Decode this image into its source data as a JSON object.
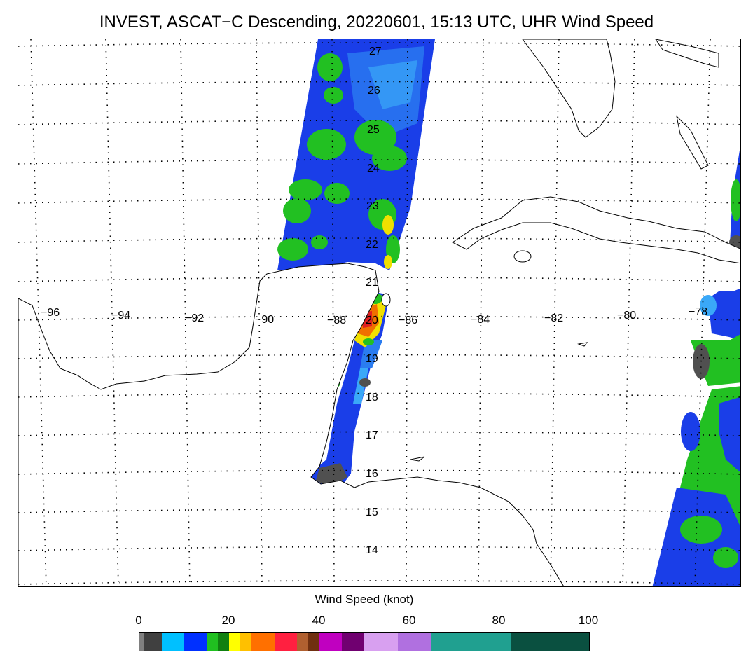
{
  "title": "INVEST, ASCAT−C Descending, 20220601, 15:13 UTC, UHR Wind Speed",
  "map": {
    "lon_labels": [
      "−96",
      "−94",
      "−92",
      "−90",
      "−88",
      "−86",
      "−84",
      "−82",
      "−80",
      "−78"
    ],
    "lat_labels": [
      "27",
      "26",
      "25",
      "24",
      "23",
      "22",
      "21",
      "20",
      "19",
      "18",
      "17",
      "16",
      "15",
      "14"
    ],
    "colors": {
      "land_fill": "#ffffff",
      "coast": "#000000",
      "grid": "#000000",
      "swath_blue": "#1030e0",
      "swath_green": "#22c022",
      "swath_cyan": "#30a8ff",
      "swath_yellow": "#f0e000",
      "swath_orange": "#f07000",
      "swath_red": "#e02020",
      "swath_gray": "#505050"
    }
  },
  "colorbar": {
    "label": "Wind Speed (knot)",
    "tick_labels": [
      "0",
      "20",
      "40",
      "60",
      "80",
      "100"
    ],
    "segments": [
      {
        "color": "#808080",
        "from": 0,
        "to": 1
      },
      {
        "color": "#404040",
        "from": 1,
        "to": 5
      },
      {
        "color": "#00c0ff",
        "from": 5,
        "to": 10
      },
      {
        "color": "#0030ff",
        "from": 10,
        "to": 15
      },
      {
        "color": "#20c020",
        "from": 15,
        "to": 17.5
      },
      {
        "color": "#108010",
        "from": 17.5,
        "to": 20
      },
      {
        "color": "#ffff00",
        "from": 20,
        "to": 22.5
      },
      {
        "color": "#ffc000",
        "from": 22.5,
        "to": 25
      },
      {
        "color": "#ff7000",
        "from": 25,
        "to": 30
      },
      {
        "color": "#ff2040",
        "from": 30,
        "to": 35
      },
      {
        "color": "#b06030",
        "from": 35,
        "to": 37.5
      },
      {
        "color": "#703010",
        "from": 37.5,
        "to": 40
      },
      {
        "color": "#c000c0",
        "from": 40,
        "to": 45
      },
      {
        "color": "#700070",
        "from": 45,
        "to": 50
      },
      {
        "color": "#d8a0f0",
        "from": 50,
        "to": 57.5
      },
      {
        "color": "#b070e0",
        "from": 57.5,
        "to": 65
      },
      {
        "color": "#20a090",
        "from": 65,
        "to": 82.5
      },
      {
        "color": "#0a5040",
        "from": 82.5,
        "to": 100
      }
    ]
  }
}
